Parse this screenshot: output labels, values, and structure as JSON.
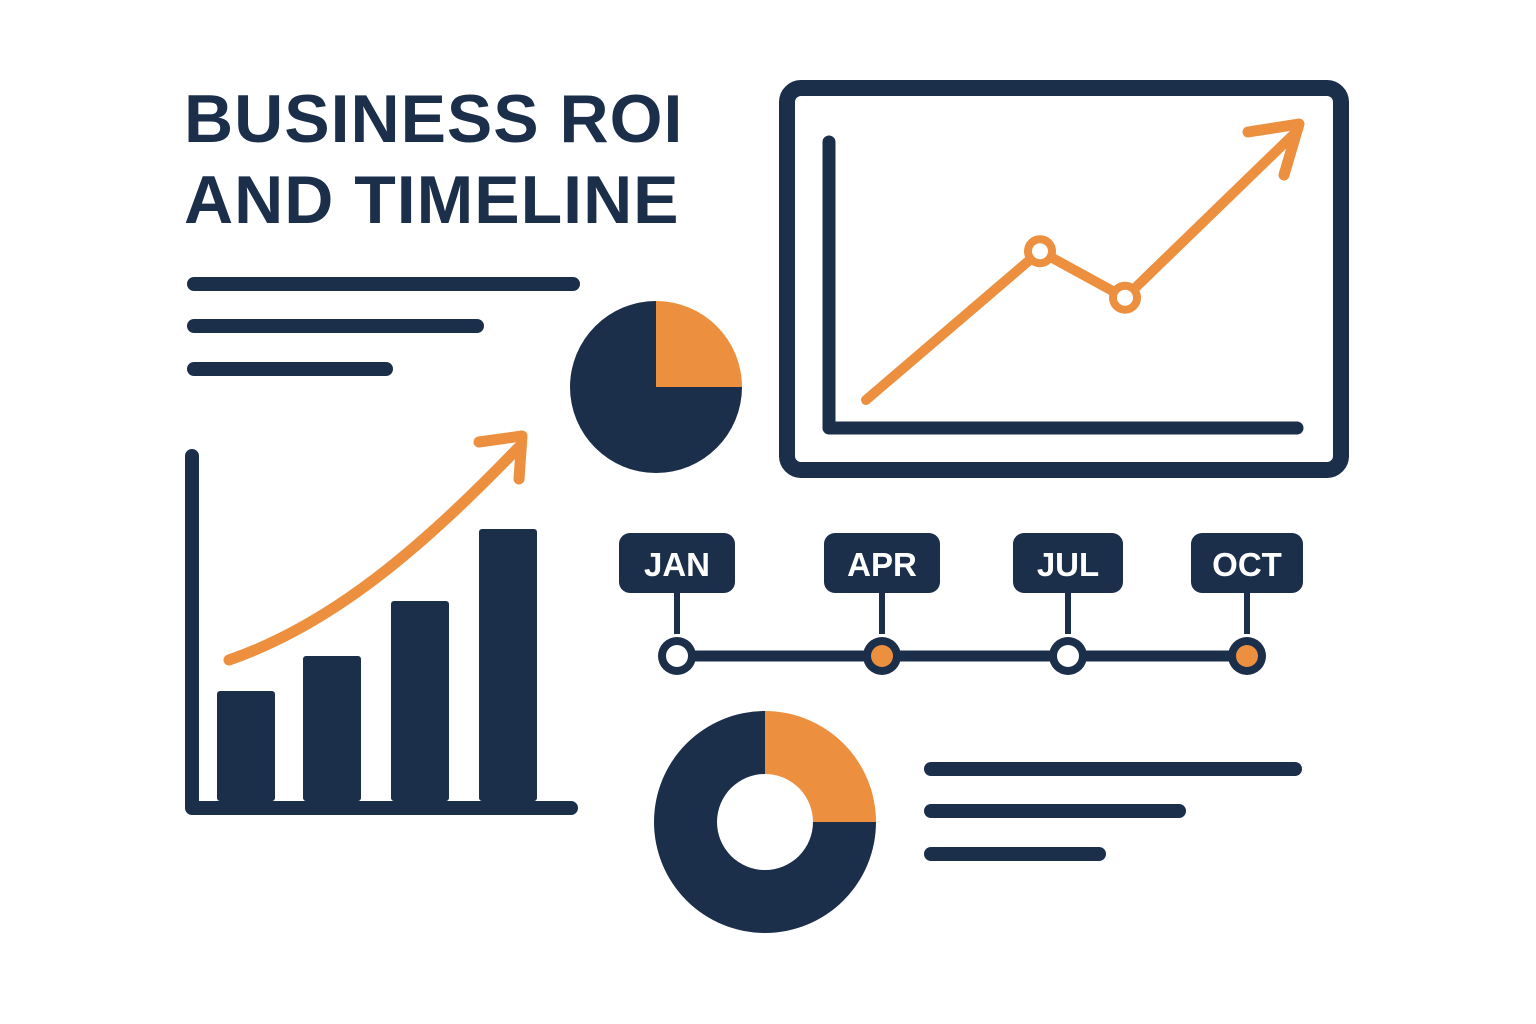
{
  "title": {
    "line1": "BUSINESS ROI",
    "line2": "AND TIMELINE"
  },
  "colors": {
    "navy": "#1b2e4a",
    "orange": "#ec8f3f",
    "background": "#ffffff"
  },
  "bar_chart": {
    "values": [
      110,
      145,
      200,
      272
    ],
    "trend_arrow": "up-right"
  },
  "pie_chart": {
    "slices": [
      {
        "color": "orange",
        "fraction": 0.25
      },
      {
        "color": "navy",
        "fraction": 0.75
      }
    ]
  },
  "donut_chart": {
    "slices": [
      {
        "color": "orange",
        "fraction": 0.25
      },
      {
        "color": "navy",
        "fraction": 0.75
      }
    ]
  },
  "line_chart": {
    "values": [
      0,
      160,
      110,
      285
    ],
    "marked_points": [
      1,
      2
    ],
    "trend_arrow": "up-right"
  },
  "timeline": {
    "milestones": [
      {
        "label": "JAN",
        "fill": "white"
      },
      {
        "label": "APR",
        "fill": "orange"
      },
      {
        "label": "JUL",
        "fill": "white"
      },
      {
        "label": "OCT",
        "fill": "orange"
      }
    ]
  },
  "icons": [
    "bar-chart-icon",
    "pie-chart-icon",
    "line-chart-icon",
    "donut-chart-icon",
    "timeline-icon",
    "text-lines-icon"
  ]
}
